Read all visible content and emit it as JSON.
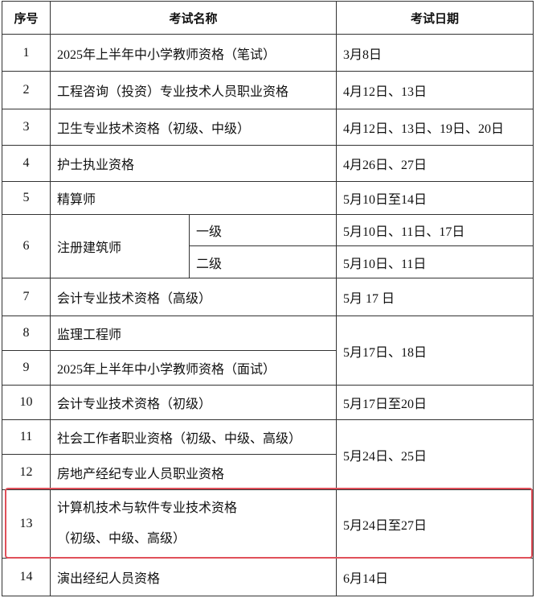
{
  "table": {
    "headers": [
      "序号",
      "考试名称",
      "考试日期"
    ],
    "rows": [
      {
        "no": "1",
        "name": "2025年上半年中小学教师资格（笔试）",
        "date": "3月8日"
      },
      {
        "no": "2",
        "name": "工程咨询（投资）专业技术人员职业资格",
        "date": "4月12日、13日"
      },
      {
        "no": "3",
        "name": "卫生专业技术资格（初级、中级）",
        "date": "4月12日、13日、19日、20日"
      },
      {
        "no": "4",
        "name": "护士执业资格",
        "date": "4月26日、27日"
      },
      {
        "no": "5",
        "name": "精算师",
        "date": "5月10日至14日"
      },
      {
        "no": "6",
        "name": "注册建筑师",
        "levels": [
          {
            "level": "一级",
            "date": "5月10日、11日、17日"
          },
          {
            "level": "二级",
            "date": "5月10日、11日"
          }
        ]
      },
      {
        "no": "7",
        "name": "会计专业技术资格（高级）",
        "date": "5月 17 日"
      },
      {
        "no": "8",
        "name": "监理工程师",
        "date": "5月17日、18日"
      },
      {
        "no": "9",
        "name": "2025年上半年中小学教师资格（面试）"
      },
      {
        "no": "10",
        "name": "会计专业技术资格（初级）",
        "date": "5月17日至20日"
      },
      {
        "no": "11",
        "name": "社会工作者职业资格（初级、中级、高级）",
        "date": "5月24日、25日"
      },
      {
        "no": "12",
        "name": "房地产经纪专业人员职业资格"
      },
      {
        "no": "13",
        "name_lines": [
          "计算机技术与软件专业技术资格",
          "（初级、中级、高级）"
        ],
        "date": "5月24日至27日"
      },
      {
        "no": "14",
        "name": "演出经纪人员资格",
        "date": "6月14日"
      }
    ]
  }
}
